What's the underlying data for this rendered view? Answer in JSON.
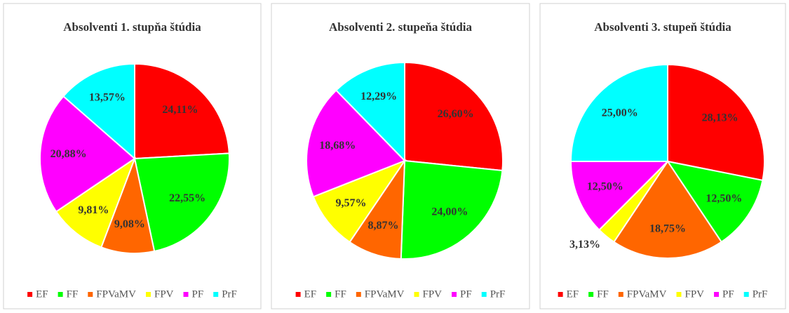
{
  "chart_data": [
    {
      "type": "pie",
      "title": "Absolventi 1. stupňa štúdia",
      "categories": [
        "EF",
        "FF",
        "FPVaMV",
        "FPV",
        "PF",
        "PrF"
      ],
      "values": [
        24.11,
        22.55,
        9.08,
        9.81,
        20.88,
        13.57
      ],
      "value_labels": [
        "24,11%",
        "22,55%",
        "9,08%",
        "9,81%",
        "20,88%",
        "13,57%"
      ],
      "colors": [
        "#ff0000",
        "#00ff00",
        "#ff6600",
        "#ffff00",
        "#ff00ff",
        "#00ffff"
      ],
      "legend": "bottom"
    },
    {
      "type": "pie",
      "title": "Absolventi 2. stupeňa štúdia",
      "categories": [
        "EF",
        "FF",
        "FPVaMV",
        "FPV",
        "PF",
        "PrF"
      ],
      "values": [
        26.6,
        24.0,
        8.87,
        9.57,
        18.68,
        12.29
      ],
      "value_labels": [
        "26,60%",
        "24,00%",
        "8,87%",
        "9,57%",
        "18,68%",
        "12,29%"
      ],
      "colors": [
        "#ff0000",
        "#00ff00",
        "#ff6600",
        "#ffff00",
        "#ff00ff",
        "#00ffff"
      ],
      "legend": "bottom"
    },
    {
      "type": "pie",
      "title": "Absolventi 3. stupeň štúdia",
      "categories": [
        "EF",
        "FF",
        "FPVaMV",
        "FPV",
        "PF",
        "PrF"
      ],
      "values": [
        28.13,
        12.5,
        18.75,
        3.13,
        12.5,
        25.0
      ],
      "value_labels": [
        "28,13%",
        "12,50%",
        "18,75%",
        "3,13%",
        "12,50%",
        "25,00%"
      ],
      "colors": [
        "#ff0000",
        "#00ff00",
        "#ff6600",
        "#ffff00",
        "#ff00ff",
        "#00ffff"
      ],
      "legend": "bottom"
    }
  ]
}
